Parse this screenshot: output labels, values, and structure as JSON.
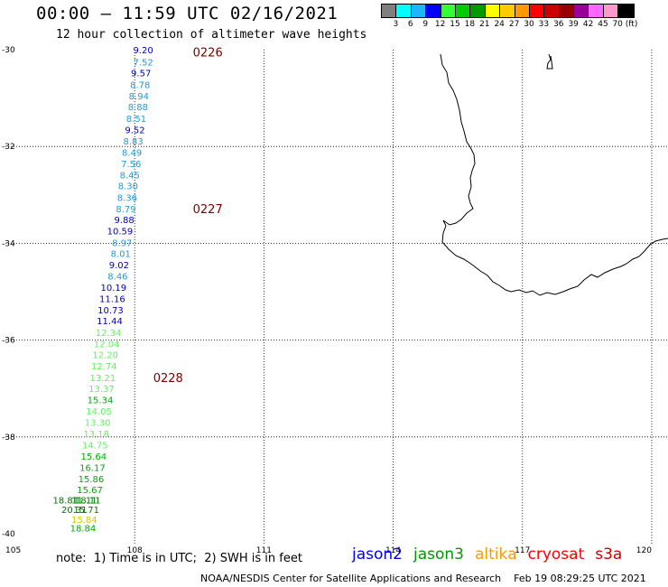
{
  "title": "00:00 – 11:59 UTC 02/16/2021",
  "subtitle": "12 hour collection of altimeter wave heights",
  "legend": {
    "colors": [
      "#7f7f7f",
      "#00ffff",
      "#1fb4ff",
      "#0000ff",
      "#33ff33",
      "#00cc00",
      "#009900",
      "#ffff00",
      "#ffcc00",
      "#ff9900",
      "#ff0000",
      "#cc0000",
      "#990000",
      "#990099",
      "#ff66ff",
      "#ff99cc",
      "#000000"
    ],
    "labels": [
      "3",
      "6",
      "9",
      "12",
      "15",
      "18",
      "21",
      "24",
      "27",
      "30",
      "33",
      "36",
      "39",
      "42",
      "45",
      "70 (ft)"
    ]
  },
  "axes": {
    "lon_ticks": [
      "105",
      "108",
      "111",
      "114",
      "117",
      "120"
    ],
    "lat_ticks": [
      "-30",
      "-32",
      "-34",
      "-36",
      "-38",
      "-40"
    ]
  },
  "time_labels": [
    "0226",
    "0227",
    "0228"
  ],
  "time_label_color": "#7a0000",
  "observations": [
    {
      "lon": 108.43,
      "lat": -30.0,
      "v": "9.20",
      "c": "#0000bb"
    },
    {
      "lon": 108.43,
      "lat": -30.25,
      "v": "7.52",
      "c": "#1e9bd6"
    },
    {
      "lon": 108.38,
      "lat": -30.48,
      "v": "9.57",
      "c": "#0000bb"
    },
    {
      "lon": 108.36,
      "lat": -30.72,
      "v": "8.78",
      "c": "#1e9bd6"
    },
    {
      "lon": 108.33,
      "lat": -30.95,
      "v": "8.94",
      "c": "#1e9bd6"
    },
    {
      "lon": 108.31,
      "lat": -31.18,
      "v": "8.88",
      "c": "#1e9bd6"
    },
    {
      "lon": 108.27,
      "lat": -31.42,
      "v": "8.51",
      "c": "#1e9bd6"
    },
    {
      "lon": 108.24,
      "lat": -31.65,
      "v": "9.52",
      "c": "#0000bb"
    },
    {
      "lon": 108.2,
      "lat": -31.88,
      "v": "8.83",
      "c": "#1e9bd6"
    },
    {
      "lon": 108.17,
      "lat": -32.12,
      "v": "8.49",
      "c": "#1e9bd6"
    },
    {
      "lon": 108.15,
      "lat": -32.35,
      "v": "7.56",
      "c": "#1e9bd6"
    },
    {
      "lon": 108.12,
      "lat": -32.58,
      "v": "8.45",
      "c": "#1e9bd6"
    },
    {
      "lon": 108.08,
      "lat": -32.81,
      "v": "8.30",
      "c": "#1e9bd6"
    },
    {
      "lon": 108.06,
      "lat": -33.05,
      "v": "8.36",
      "c": "#1e9bd6"
    },
    {
      "lon": 108.03,
      "lat": -33.28,
      "v": "8.79",
      "c": "#1e9bd6"
    },
    {
      "lon": 107.99,
      "lat": -33.51,
      "v": "9.88",
      "c": "#0000bb"
    },
    {
      "lon": 107.96,
      "lat": -33.74,
      "v": "10.59",
      "c": "#0000bb"
    },
    {
      "lon": 107.94,
      "lat": -33.98,
      "v": "8.97",
      "c": "#1e9bd6"
    },
    {
      "lon": 107.91,
      "lat": -34.21,
      "v": "8.01",
      "c": "#1e9bd6"
    },
    {
      "lon": 107.87,
      "lat": -34.44,
      "v": "9.02",
      "c": "#0000bb"
    },
    {
      "lon": 107.84,
      "lat": -34.67,
      "v": "8.46",
      "c": "#1e9bd6"
    },
    {
      "lon": 107.81,
      "lat": -34.91,
      "v": "10.19",
      "c": "#0000bb"
    },
    {
      "lon": 107.78,
      "lat": -35.14,
      "v": "11.16",
      "c": "#0000bb"
    },
    {
      "lon": 107.74,
      "lat": -35.37,
      "v": "10.73",
      "c": "#0000bb"
    },
    {
      "lon": 107.72,
      "lat": -35.6,
      "v": "11.44",
      "c": "#0000bb"
    },
    {
      "lon": 107.69,
      "lat": -35.84,
      "v": "12.34",
      "c": "#66ee66"
    },
    {
      "lon": 107.65,
      "lat": -36.07,
      "v": "12.04",
      "c": "#66ee66"
    },
    {
      "lon": 107.62,
      "lat": -36.3,
      "v": "12.20",
      "c": "#66ee66"
    },
    {
      "lon": 107.59,
      "lat": -36.53,
      "v": "12.74",
      "c": "#66ee66"
    },
    {
      "lon": 107.56,
      "lat": -36.77,
      "v": "13.21",
      "c": "#66ee66"
    },
    {
      "lon": 107.53,
      "lat": -37.0,
      "v": "13.37",
      "c": "#66ee66"
    },
    {
      "lon": 107.5,
      "lat": -37.23,
      "v": "15.34",
      "c": "#00aa00"
    },
    {
      "lon": 107.47,
      "lat": -37.46,
      "v": "14.05",
      "c": "#66ee66"
    },
    {
      "lon": 107.44,
      "lat": -37.7,
      "v": "13.30",
      "c": "#66ee66"
    },
    {
      "lon": 107.41,
      "lat": -37.93,
      "v": "13.18",
      "c": "#66ee66"
    },
    {
      "lon": 107.38,
      "lat": -38.16,
      "v": "14.75",
      "c": "#66ee66"
    },
    {
      "lon": 107.35,
      "lat": -38.4,
      "v": "15.64",
      "c": "#00aa00"
    },
    {
      "lon": 107.32,
      "lat": -38.63,
      "v": "16.17",
      "c": "#00aa00"
    },
    {
      "lon": 107.29,
      "lat": -38.86,
      "v": "15.86",
      "c": "#00aa00"
    },
    {
      "lon": 107.26,
      "lat": -39.09,
      "v": "15.67",
      "c": "#00aa00"
    },
    {
      "lon": 107.21,
      "lat": -39.3,
      "v": "18.11",
      "c": "#007700"
    },
    {
      "lon": 107.13,
      "lat": -39.3,
      "v": "11.11",
      "c": "#007700"
    },
    {
      "lon": 106.7,
      "lat": -39.3,
      "v": "18.81",
      "c": "#007700"
    },
    {
      "lon": 107.18,
      "lat": -39.5,
      "v": "15.71",
      "c": "#007700"
    },
    {
      "lon": 106.9,
      "lat": -39.5,
      "v": "20.31",
      "c": "#007700"
    },
    {
      "lon": 107.13,
      "lat": -39.7,
      "v": "15.84",
      "c": "#cccc00"
    },
    {
      "lon": 107.1,
      "lat": -39.88,
      "v": "18.84",
      "c": "#00aa00"
    }
  ],
  "footnote": "note:  1) Time is in UTC;  2) SWH is in feet",
  "satellites": [
    {
      "name": "jason2",
      "color": "#0000ff"
    },
    {
      "name": "jason3",
      "color": "#009900"
    },
    {
      "name": "altika",
      "color": "#ff9900"
    },
    {
      "name": "cryosat",
      "color": "#ff0000"
    },
    {
      "name": "s3a",
      "color": "#cc0000"
    }
  ],
  "credit": "NOAA/NESDIS Center for Satellite Applications and Research    Feb 19 08:29:25 UTC 2021"
}
